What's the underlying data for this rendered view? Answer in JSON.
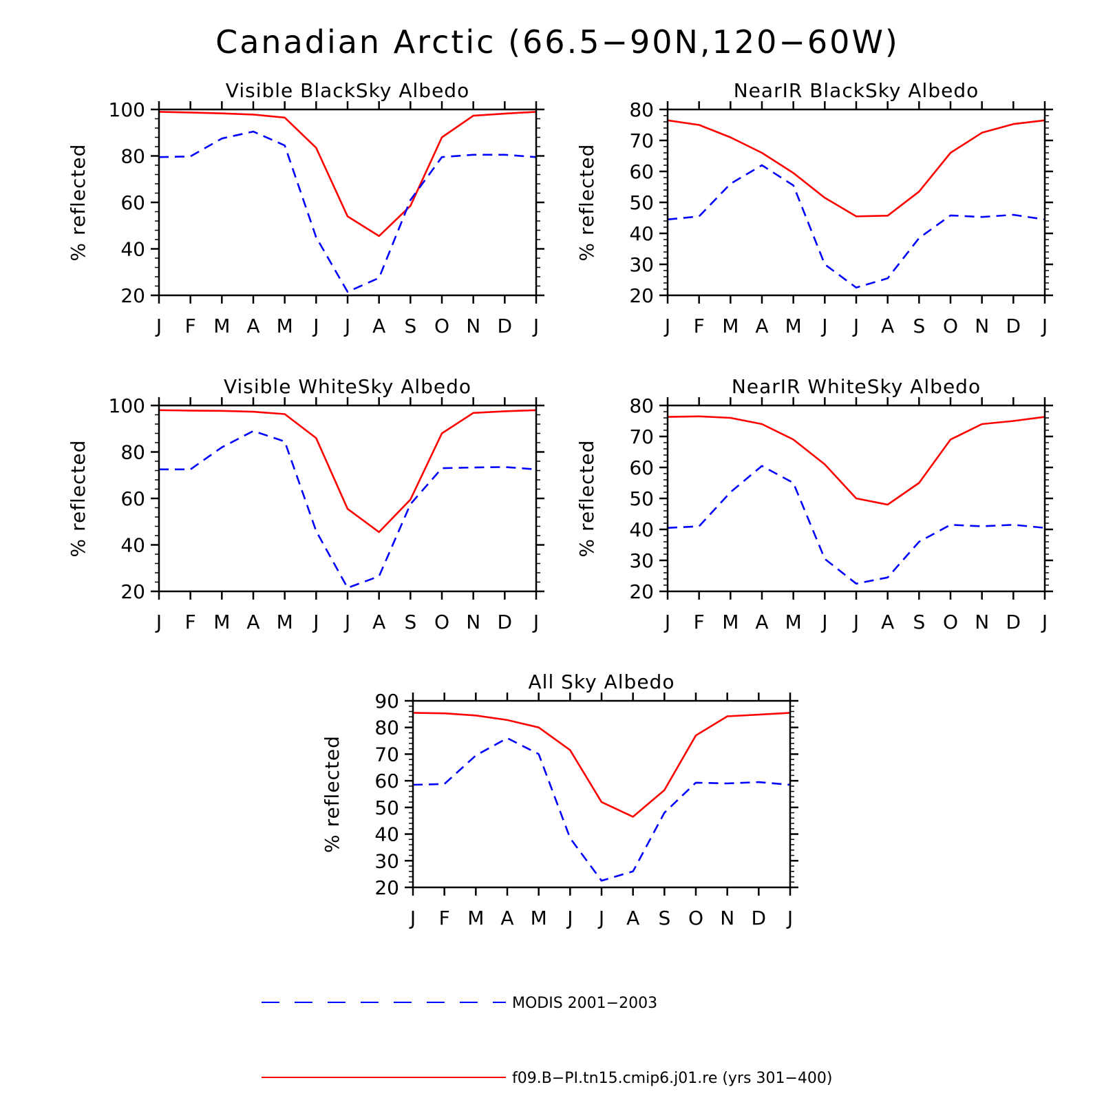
{
  "page_title": "Canadian Arctic (66.5−90N,120−60W)",
  "chart_data": [
    {
      "type": "line",
      "title": "Visible BlackSky Albedo",
      "ylabel": "% reflected",
      "categories": [
        "J",
        "F",
        "M",
        "A",
        "M",
        "J",
        "J",
        "A",
        "S",
        "O",
        "N",
        "D",
        "J"
      ],
      "ylim": [
        20,
        100
      ],
      "yticks": [
        20,
        40,
        60,
        80,
        100
      ],
      "series": [
        {
          "name": "f09.B−PI.tn15.cmip6.j01.re (yrs 301−400)",
          "color": "#ff0000",
          "dash": "solid",
          "values": [
            99,
            98.7,
            98.3,
            97.8,
            96.5,
            83.5,
            54,
            45.5,
            58.5,
            88,
            97.3,
            98.2,
            99
          ]
        },
        {
          "name": "MODIS 2001−2003",
          "color": "#0000ff",
          "dash": "dashed",
          "values": [
            79.5,
            79.8,
            87.5,
            90.5,
            84.5,
            45,
            21.5,
            27.5,
            61,
            79.5,
            80.5,
            80.5,
            79.5
          ]
        }
      ]
    },
    {
      "type": "line",
      "title": "NearIR BlackSky Albedo",
      "ylabel": "% reflected",
      "categories": [
        "J",
        "F",
        "M",
        "A",
        "M",
        "J",
        "J",
        "A",
        "S",
        "O",
        "N",
        "D",
        "J"
      ],
      "ylim": [
        20,
        80
      ],
      "yticks": [
        20,
        30,
        40,
        50,
        60,
        70,
        80
      ],
      "series": [
        {
          "name": "f09.B−PI.tn15.cmip6.j01.re (yrs 301−400)",
          "color": "#ff0000",
          "dash": "solid",
          "values": [
            76.5,
            75,
            71,
            66,
            59.5,
            51.5,
            45.5,
            45.7,
            53.5,
            66,
            72.5,
            75.3,
            76.5
          ]
        },
        {
          "name": "MODIS 2001−2003",
          "color": "#0000ff",
          "dash": "dashed",
          "values": [
            44.5,
            45.5,
            56,
            62,
            55.5,
            30,
            22.5,
            25.5,
            38.5,
            45.8,
            45.3,
            46,
            44.5
          ]
        }
      ]
    },
    {
      "type": "line",
      "title": "Visible WhiteSky Albedo",
      "ylabel": "% reflected",
      "categories": [
        "J",
        "F",
        "M",
        "A",
        "M",
        "J",
        "J",
        "A",
        "S",
        "O",
        "N",
        "D",
        "J"
      ],
      "ylim": [
        20,
        100
      ],
      "yticks": [
        20,
        40,
        60,
        80,
        100
      ],
      "series": [
        {
          "name": "f09.B−PI.tn15.cmip6.j01.re (yrs 301−400)",
          "color": "#ff0000",
          "dash": "solid",
          "values": [
            98,
            97.8,
            97.7,
            97.3,
            96.3,
            86,
            55.5,
            45.5,
            59.5,
            88,
            96.8,
            97.5,
            98
          ]
        },
        {
          "name": "MODIS 2001−2003",
          "color": "#0000ff",
          "dash": "dashed",
          "values": [
            72.5,
            72.5,
            82,
            89,
            84.5,
            46,
            21.5,
            26.5,
            57.5,
            73,
            73.3,
            73.5,
            72.5
          ]
        }
      ]
    },
    {
      "type": "line",
      "title": "NearIR WhiteSky Albedo",
      "ylabel": "% reflected",
      "categories": [
        "J",
        "F",
        "M",
        "A",
        "M",
        "J",
        "J",
        "A",
        "S",
        "O",
        "N",
        "D",
        "J"
      ],
      "ylim": [
        20,
        80
      ],
      "yticks": [
        20,
        30,
        40,
        50,
        60,
        70,
        80
      ],
      "series": [
        {
          "name": "f09.B−PI.tn15.cmip6.j01.re (yrs 301−400)",
          "color": "#ff0000",
          "dash": "solid",
          "values": [
            76.3,
            76.5,
            76,
            74,
            69,
            61,
            50,
            48,
            55,
            69,
            74,
            75,
            76.3
          ]
        },
        {
          "name": "MODIS 2001−2003",
          "color": "#0000ff",
          "dash": "dashed",
          "values": [
            40.5,
            41,
            52,
            60.5,
            55,
            30.5,
            22.5,
            24.5,
            36,
            41.5,
            41,
            41.5,
            40.5
          ]
        }
      ]
    },
    {
      "type": "line",
      "title": "All Sky Albedo",
      "ylabel": "% reflected",
      "categories": [
        "J",
        "F",
        "M",
        "A",
        "M",
        "J",
        "J",
        "A",
        "S",
        "O",
        "N",
        "D",
        "J"
      ],
      "ylim": [
        20,
        90
      ],
      "yticks": [
        20,
        30,
        40,
        50,
        60,
        70,
        80,
        90
      ],
      "series": [
        {
          "name": "f09.B−PI.tn15.cmip6.j01.re (yrs 301−400)",
          "color": "#ff0000",
          "dash": "solid",
          "values": [
            85.5,
            85.3,
            84.5,
            82.8,
            80,
            71.5,
            52,
            46.5,
            56.5,
            77,
            84.2,
            84.8,
            85.5
          ]
        },
        {
          "name": "MODIS 2001−2003",
          "color": "#0000ff",
          "dash": "dashed",
          "values": [
            58.5,
            58.8,
            69.5,
            76,
            70,
            38.5,
            22.5,
            26,
            48,
            59.3,
            59,
            59.5,
            58.5
          ]
        }
      ]
    }
  ],
  "legend": [
    {
      "label": "MODIS 2001−2003",
      "color": "#0000ff",
      "dash": "dashed"
    },
    {
      "label": "f09.B−PI.tn15.cmip6.j01.re (yrs 301−400)",
      "color": "#ff0000",
      "dash": "solid"
    }
  ]
}
